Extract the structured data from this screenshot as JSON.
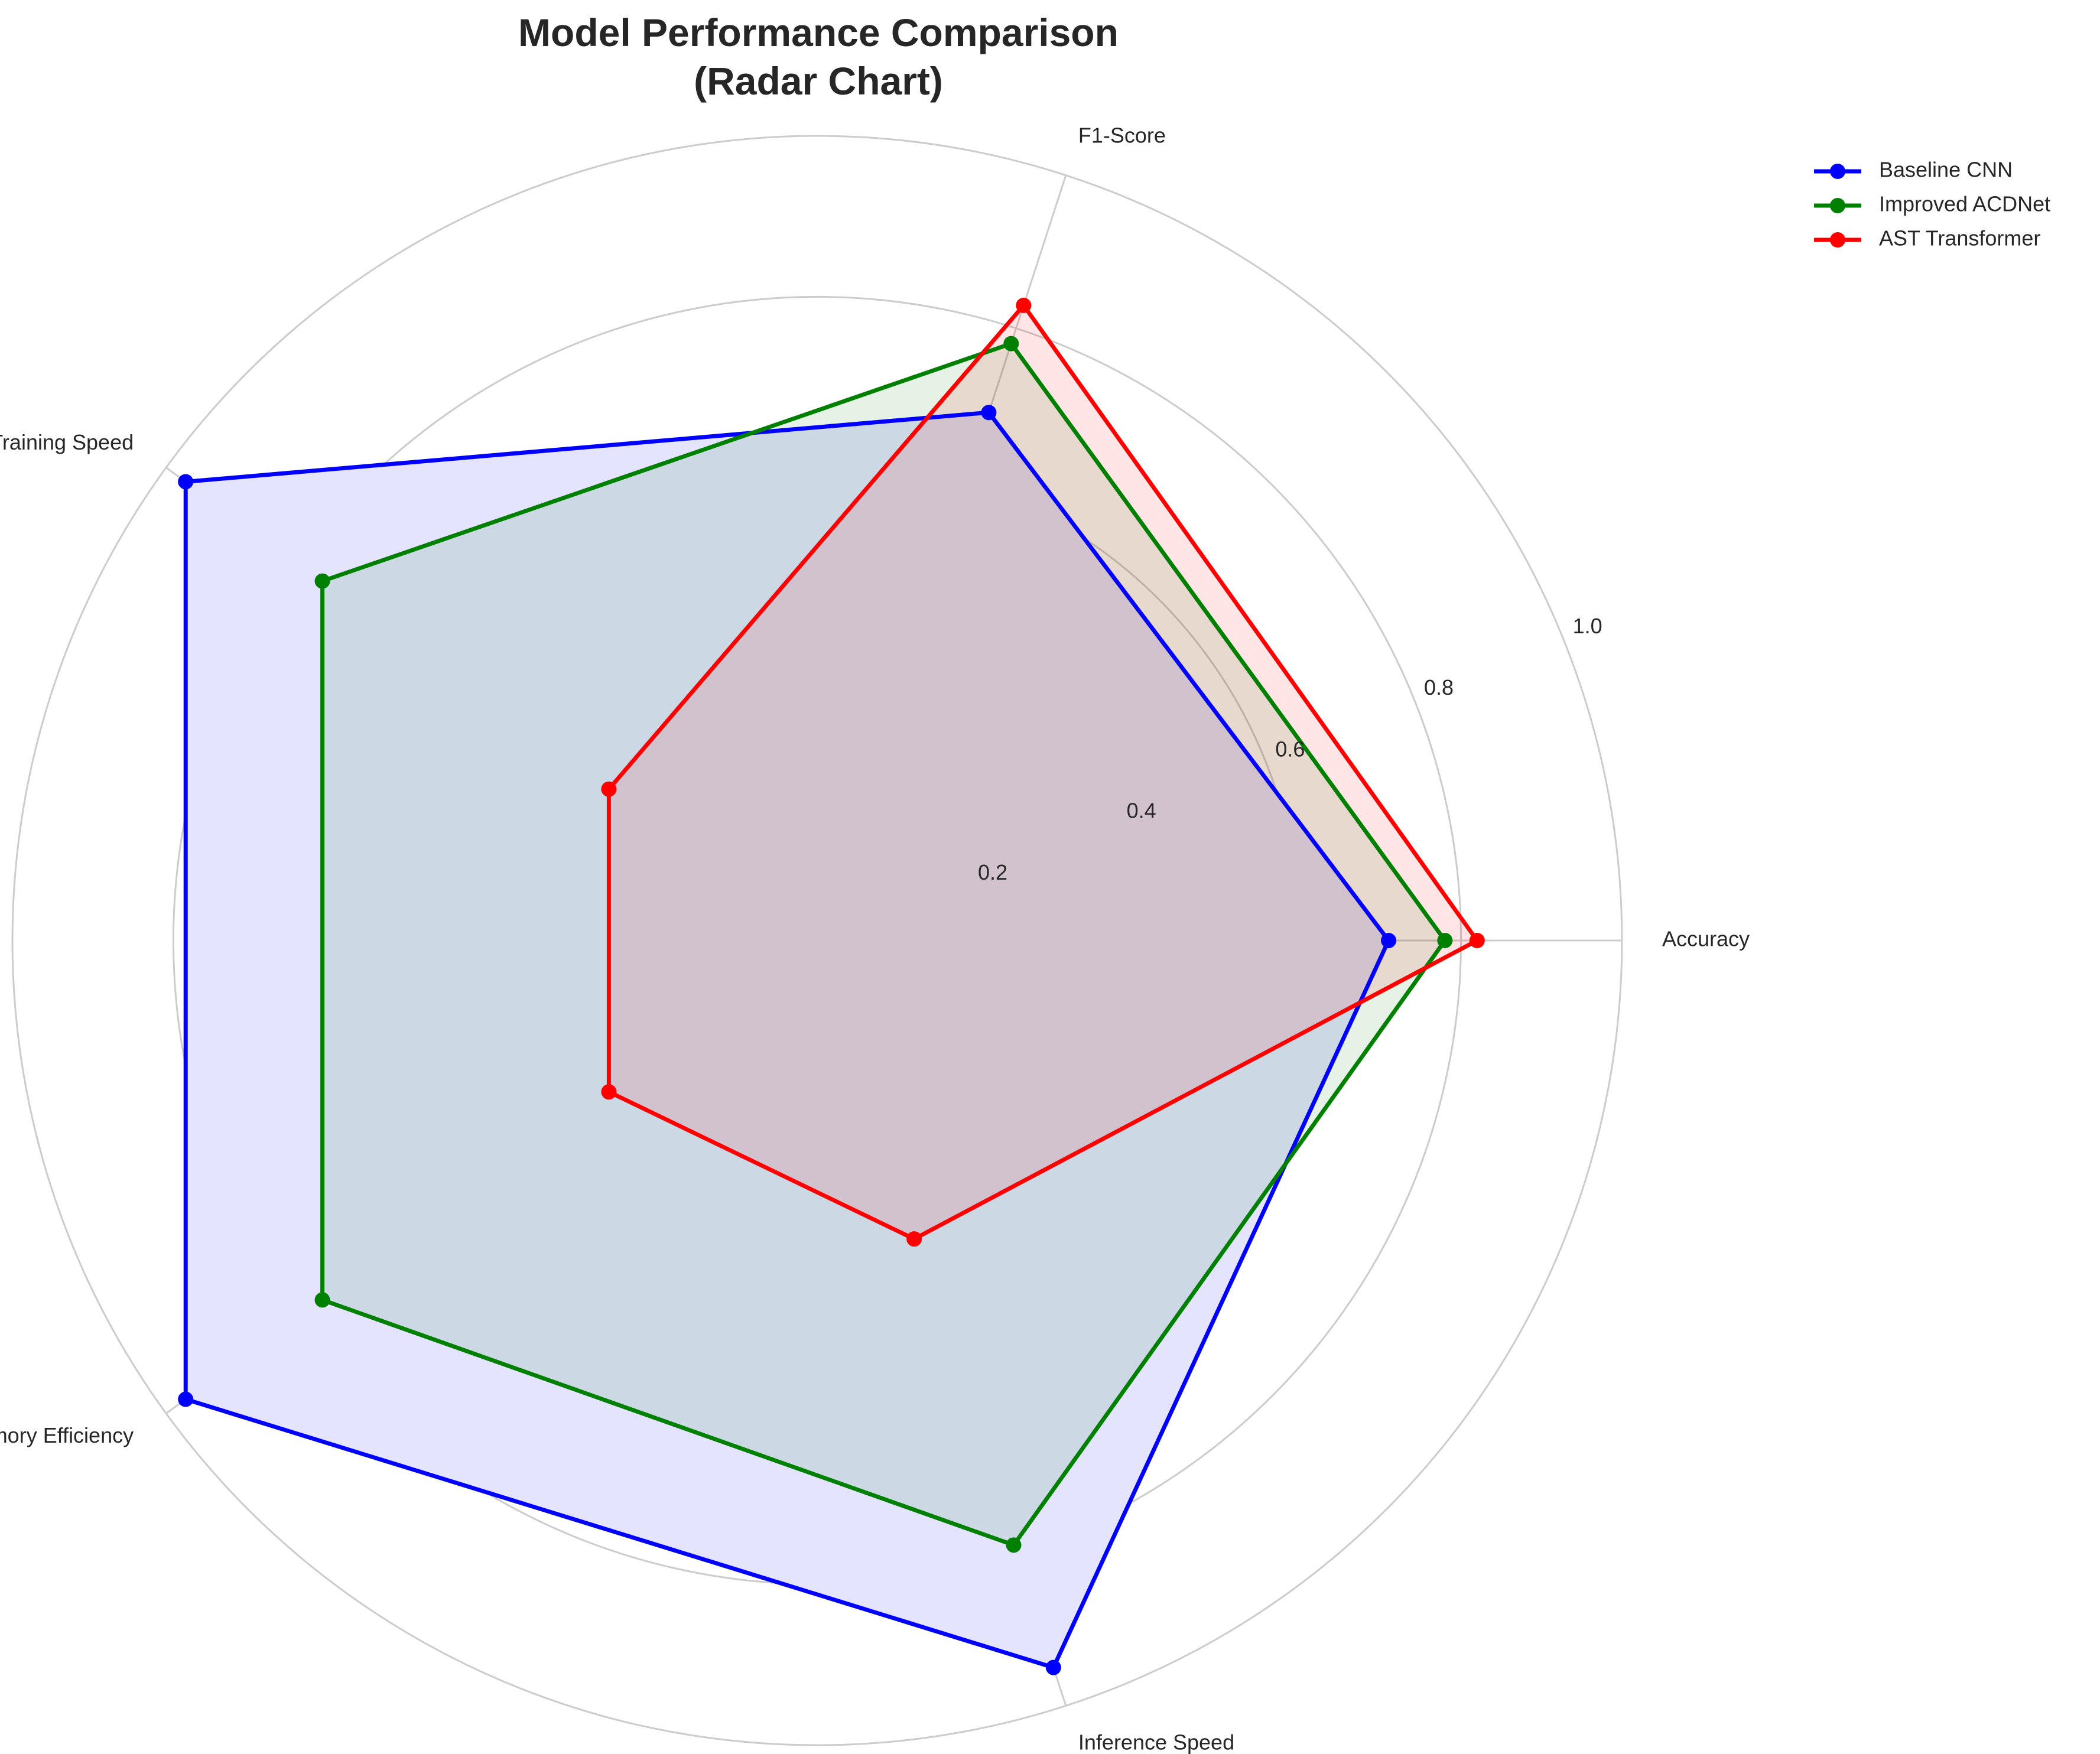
{
  "chart_data": {
    "type": "radar",
    "title": "Model Performance Comparison",
    "subtitle": "(Radar Chart)",
    "axes": [
      "Accuracy",
      "F1-Score",
      "Training Speed",
      "Memory Efficiency",
      "Inference Speed"
    ],
    "rlim": [
      0,
      1.0
    ],
    "rticks": [
      0.2,
      0.4,
      0.6,
      0.8,
      1.0
    ],
    "rtick_labels": [
      "0.2",
      "0.4",
      "0.6",
      "0.8",
      "1.0"
    ],
    "grid": true,
    "legend_position": "top-right (outside plot)",
    "series": [
      {
        "name": "Baseline CNN",
        "color": "#0000ff",
        "fill": "#e4e4ff",
        "values": [
          0.71,
          0.69,
          0.97,
          0.97,
          0.95
        ]
      },
      {
        "name": "Improved ACDNet",
        "color": "#008000",
        "fill": "#008000",
        "values": [
          0.78,
          0.78,
          0.76,
          0.76,
          0.79
        ]
      },
      {
        "name": "AST Transformer",
        "color": "#ff0000",
        "fill": "#ff0000",
        "values": [
          0.82,
          0.83,
          0.32,
          0.32,
          0.39
        ]
      }
    ]
  }
}
